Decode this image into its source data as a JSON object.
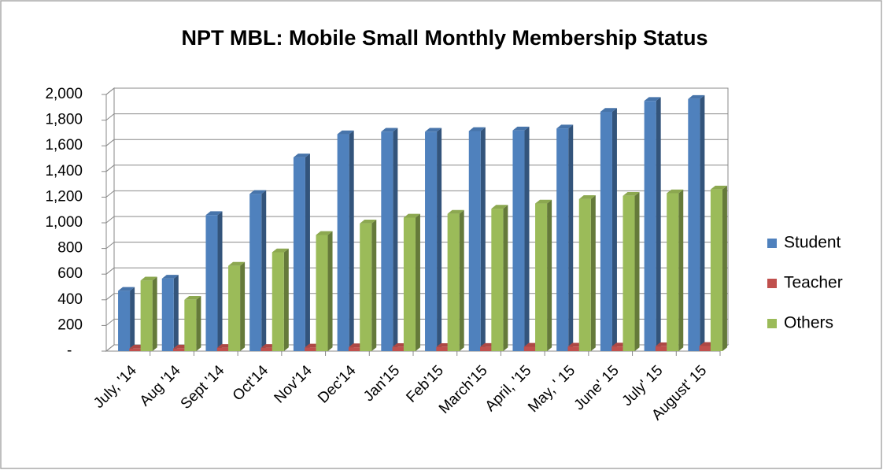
{
  "chart_data": {
    "type": "bar3d",
    "title": "NPT MBL: Mobile Small Monthly Membership Status",
    "categories": [
      "July, '14",
      "Aug '14",
      "Sept '14",
      "Oct'14",
      "Nov'14",
      "Dec'14",
      "Jan'15",
      "Feb'15",
      "March'15",
      "April, '15",
      "May, ' 15",
      "June' 15",
      "July' 15",
      "August' 15"
    ],
    "series": [
      {
        "name": "Student",
        "color": "#4f81bd",
        "values": [
          470,
          565,
          1060,
          1225,
          1510,
          1690,
          1710,
          1710,
          1715,
          1720,
          1735,
          1865,
          1950,
          1965
        ]
      },
      {
        "name": "Teacher",
        "color": "#c0504d",
        "values": [
          20,
          20,
          25,
          25,
          28,
          30,
          32,
          32,
          33,
          34,
          35,
          36,
          38,
          40
        ]
      },
      {
        "name": "Others",
        "color": "#9bbb59",
        "values": [
          550,
          400,
          665,
          770,
          905,
          995,
          1040,
          1070,
          1110,
          1150,
          1185,
          1210,
          1230,
          1260
        ]
      }
    ],
    "ylim": [
      0,
      2000
    ],
    "yticks": [
      {
        "value": 0,
        "label": "-"
      },
      200,
      400,
      600,
      800,
      {
        "value": 1000,
        "label": "1,000"
      },
      {
        "value": 1200,
        "label": "1,200"
      },
      {
        "value": 1400,
        "label": "1,400"
      },
      {
        "value": 1600,
        "label": "1,600"
      },
      {
        "value": 1800,
        "label": "1,800"
      },
      {
        "value": 2000,
        "label": "2,000"
      }
    ],
    "grid": true,
    "legend": "right"
  }
}
